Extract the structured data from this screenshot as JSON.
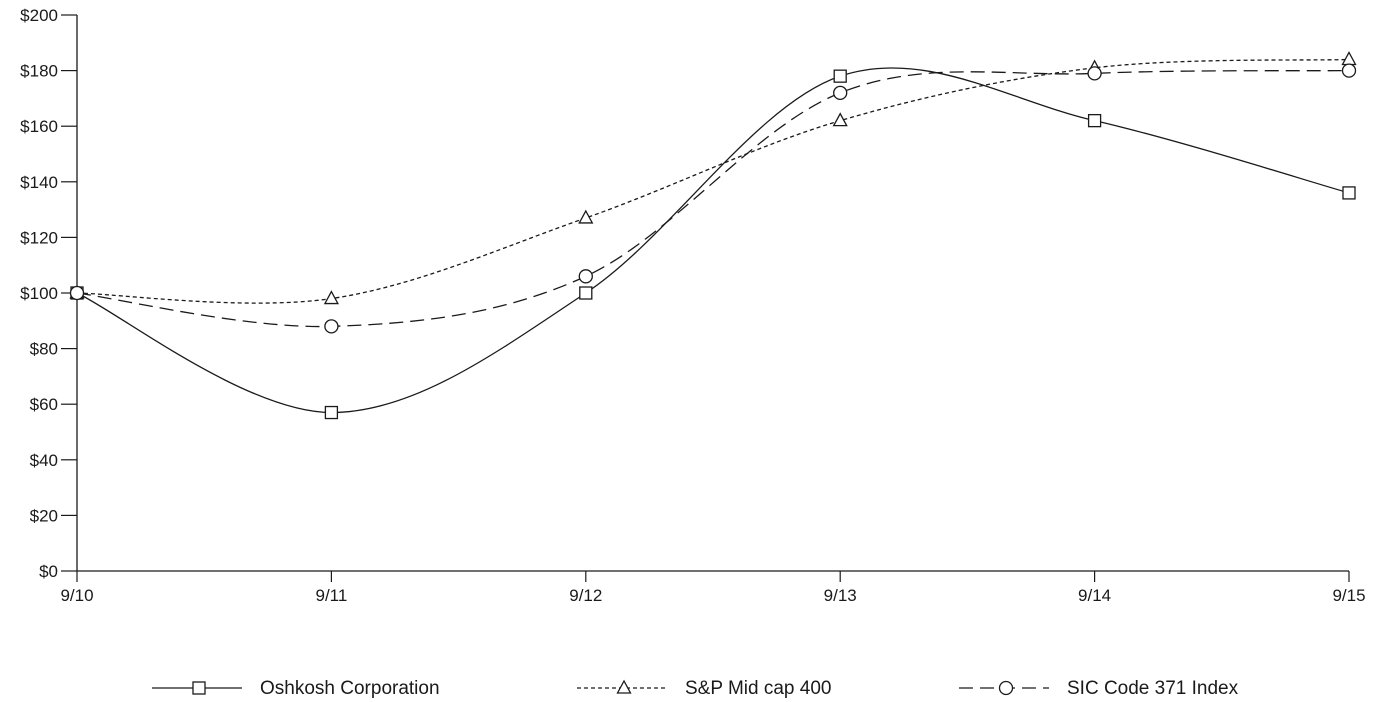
{
  "chart_data": {
    "type": "line",
    "title": "",
    "xlabel": "",
    "ylabel": "",
    "categories": [
      "9/10",
      "9/11",
      "9/12",
      "9/13",
      "9/14",
      "9/15"
    ],
    "ylim": [
      0,
      200
    ],
    "yticks": [
      0,
      20,
      40,
      60,
      80,
      100,
      120,
      140,
      160,
      180,
      200
    ],
    "ytick_labels": [
      "$0",
      "$20",
      "$40",
      "$60",
      "$80",
      "$100",
      "$120",
      "$140",
      "$160",
      "$180",
      "$200"
    ],
    "grid": false,
    "legend_position": "bottom",
    "series": [
      {
        "name": "Oshkosh Corporation",
        "values": [
          100,
          57,
          100,
          178,
          162,
          136
        ],
        "marker": "square",
        "dash": "solid"
      },
      {
        "name": "S&P Mid cap 400",
        "values": [
          100,
          98,
          127,
          162,
          181,
          184
        ],
        "marker": "triangle",
        "dash": "dotted"
      },
      {
        "name": "SIC Code 371 Index",
        "values": [
          100,
          88,
          106,
          172,
          179,
          180
        ],
        "marker": "circle",
        "dash": "dashed"
      }
    ],
    "colors": {
      "line": "#1a1a1a",
      "background": "#ffffff"
    }
  }
}
